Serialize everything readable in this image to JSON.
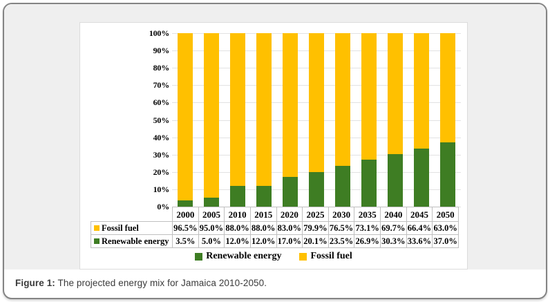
{
  "figure": {
    "caption": {
      "label": "Figure 1:",
      "text": "The projected energy mix for Jamaica 2010-2050."
    }
  },
  "colors": {
    "fossil": "#FFC000",
    "renewable": "#3E7D23",
    "panel_bg": "#EFEFEF",
    "gridline": "#E2E2E2",
    "table_border": "#BFBFBF"
  },
  "chart_data": {
    "type": "bar",
    "stacked": true,
    "title": "",
    "xlabel": "",
    "ylabel": "",
    "categories": [
      "2000",
      "2005",
      "2010",
      "2015",
      "2020",
      "2025",
      "2030",
      "2035",
      "2040",
      "2045",
      "2050"
    ],
    "series": [
      {
        "name": "Fossil fuel",
        "color": "#FFC000",
        "values": [
          96.5,
          95.0,
          88.0,
          88.0,
          83.0,
          79.9,
          76.5,
          73.1,
          69.7,
          66.4,
          63.0
        ]
      },
      {
        "name": "Renewable energy",
        "color": "#3E7D23",
        "values": [
          3.5,
          5.0,
          12.0,
          12.0,
          17.0,
          20.1,
          23.5,
          26.9,
          30.3,
          33.6,
          37.0
        ]
      }
    ],
    "stack_bottom_to_top": [
      "Renewable energy",
      "Fossil fuel"
    ],
    "y_axis": {
      "min": 0,
      "max": 100,
      "step": 10,
      "ticks": [
        "100%",
        "90%",
        "80%",
        "70%",
        "60%",
        "50%",
        "40%",
        "30%",
        "20%",
        "10%",
        "0%"
      ]
    },
    "grid": true,
    "value_format": "one_decimal_percent",
    "legend": {
      "position": "bottom",
      "items": [
        {
          "label": "Renewable energy",
          "color": "#3E7D23"
        },
        {
          "label": "Fossil fuel",
          "color": "#FFC000"
        }
      ]
    },
    "data_table": {
      "row_order": [
        "Fossil fuel",
        "Renewable energy"
      ]
    }
  }
}
